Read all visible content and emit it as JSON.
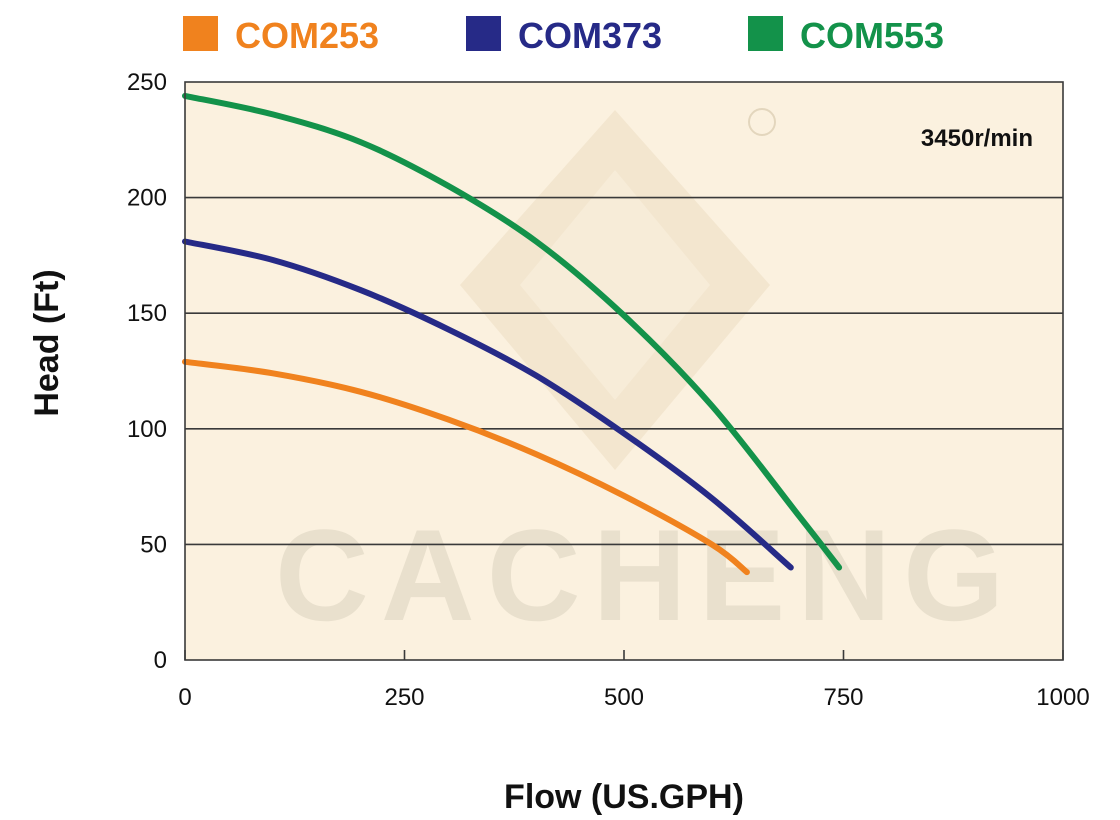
{
  "chart_data": {
    "type": "line",
    "xlabel": "Flow (US.GPH)",
    "ylabel": "Head (Ft)",
    "annotation": "3450r/min",
    "xlim": [
      0,
      1000
    ],
    "ylim": [
      0,
      250
    ],
    "xticks": [
      0,
      250,
      500,
      750,
      1000
    ],
    "yticks": [
      0,
      50,
      100,
      150,
      200,
      250
    ],
    "grid": "horizontal",
    "legend_position": "top",
    "background_color": "#fbf1df",
    "watermark": "CACHENG",
    "series": [
      {
        "name": "COM253",
        "color": "#f0821e",
        "x": [
          0,
          100,
          200,
          300,
          400,
          500,
          600,
          640
        ],
        "y": [
          129,
          124,
          116,
          104,
          89,
          71,
          50,
          38
        ]
      },
      {
        "name": "COM373",
        "color": "#262a87",
        "x": [
          0,
          100,
          200,
          300,
          400,
          500,
          600,
          690
        ],
        "y": [
          181,
          173,
          160,
          143,
          123,
          98,
          70,
          40
        ]
      },
      {
        "name": "COM553",
        "color": "#13924a",
        "x": [
          0,
          100,
          200,
          300,
          400,
          500,
          600,
          700,
          745
        ],
        "y": [
          244,
          236,
          224,
          205,
          181,
          149,
          110,
          62,
          40
        ]
      }
    ]
  }
}
